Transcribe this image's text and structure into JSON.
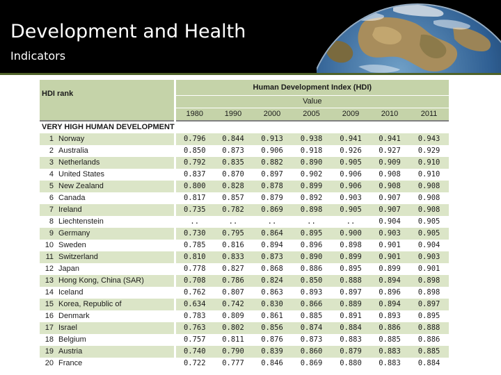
{
  "slide": {
    "title": "Development and Health",
    "subtitle": "Indicators"
  },
  "colors": {
    "banner": "#000000",
    "header_green": "#c5d3a9",
    "row_stripe": "#dbe5c7",
    "rule_green": "#4f6228"
  },
  "table": {
    "rank_header": "HDI rank",
    "index_header": "Human Development Index (HDI)",
    "value_header": "Value",
    "years": [
      "1980",
      "1990",
      "2000",
      "2005",
      "2009",
      "2010",
      "2011"
    ],
    "group_label": "VERY HIGH HUMAN DEVELOPMENT",
    "rows": [
      {
        "rank": "1",
        "country": "Norway",
        "values": [
          "0.796",
          "0.844",
          "0.913",
          "0.938",
          "0.941",
          "0.941",
          "0.943"
        ]
      },
      {
        "rank": "2",
        "country": "Australia",
        "values": [
          "0.850",
          "0.873",
          "0.906",
          "0.918",
          "0.926",
          "0.927",
          "0.929"
        ]
      },
      {
        "rank": "3",
        "country": "Netherlands",
        "values": [
          "0.792",
          "0.835",
          "0.882",
          "0.890",
          "0.905",
          "0.909",
          "0.910"
        ]
      },
      {
        "rank": "4",
        "country": "United States",
        "values": [
          "0.837",
          "0.870",
          "0.897",
          "0.902",
          "0.906",
          "0.908",
          "0.910"
        ]
      },
      {
        "rank": "5",
        "country": "New Zealand",
        "values": [
          "0.800",
          "0.828",
          "0.878",
          "0.899",
          "0.906",
          "0.908",
          "0.908"
        ]
      },
      {
        "rank": "6",
        "country": "Canada",
        "values": [
          "0.817",
          "0.857",
          "0.879",
          "0.892",
          "0.903",
          "0.907",
          "0.908"
        ]
      },
      {
        "rank": "7",
        "country": "Ireland",
        "values": [
          "0.735",
          "0.782",
          "0.869",
          "0.898",
          "0.905",
          "0.907",
          "0.908"
        ]
      },
      {
        "rank": "8",
        "country": "Liechtenstein",
        "values": [
          "..",
          "..",
          "..",
          "..",
          "..",
          "0.904",
          "0.905"
        ]
      },
      {
        "rank": "9",
        "country": "Germany",
        "values": [
          "0.730",
          "0.795",
          "0.864",
          "0.895",
          "0.900",
          "0.903",
          "0.905"
        ]
      },
      {
        "rank": "10",
        "country": "Sweden",
        "values": [
          "0.785",
          "0.816",
          "0.894",
          "0.896",
          "0.898",
          "0.901",
          "0.904"
        ]
      },
      {
        "rank": "11",
        "country": "Switzerland",
        "values": [
          "0.810",
          "0.833",
          "0.873",
          "0.890",
          "0.899",
          "0.901",
          "0.903"
        ]
      },
      {
        "rank": "12",
        "country": "Japan",
        "values": [
          "0.778",
          "0.827",
          "0.868",
          "0.886",
          "0.895",
          "0.899",
          "0.901"
        ]
      },
      {
        "rank": "13",
        "country": "Hong Kong, China (SAR)",
        "values": [
          "0.708",
          "0.786",
          "0.824",
          "0.850",
          "0.888",
          "0.894",
          "0.898"
        ]
      },
      {
        "rank": "14",
        "country": "Iceland",
        "values": [
          "0.762",
          "0.807",
          "0.863",
          "0.893",
          "0.897",
          "0.896",
          "0.898"
        ]
      },
      {
        "rank": "15",
        "country": "Korea, Republic of",
        "values": [
          "0.634",
          "0.742",
          "0.830",
          "0.866",
          "0.889",
          "0.894",
          "0.897"
        ]
      },
      {
        "rank": "16",
        "country": "Denmark",
        "values": [
          "0.783",
          "0.809",
          "0.861",
          "0.885",
          "0.891",
          "0.893",
          "0.895"
        ]
      },
      {
        "rank": "17",
        "country": "Israel",
        "values": [
          "0.763",
          "0.802",
          "0.856",
          "0.874",
          "0.884",
          "0.886",
          "0.888"
        ]
      },
      {
        "rank": "18",
        "country": "Belgium",
        "values": [
          "0.757",
          "0.811",
          "0.876",
          "0.873",
          "0.883",
          "0.885",
          "0.886"
        ]
      },
      {
        "rank": "19",
        "country": "Austria",
        "values": [
          "0.740",
          "0.790",
          "0.839",
          "0.860",
          "0.879",
          "0.883",
          "0.885"
        ]
      },
      {
        "rank": "20",
        "country": "France",
        "values": [
          "0.722",
          "0.777",
          "0.846",
          "0.869",
          "0.880",
          "0.883",
          "0.884"
        ]
      }
    ]
  }
}
